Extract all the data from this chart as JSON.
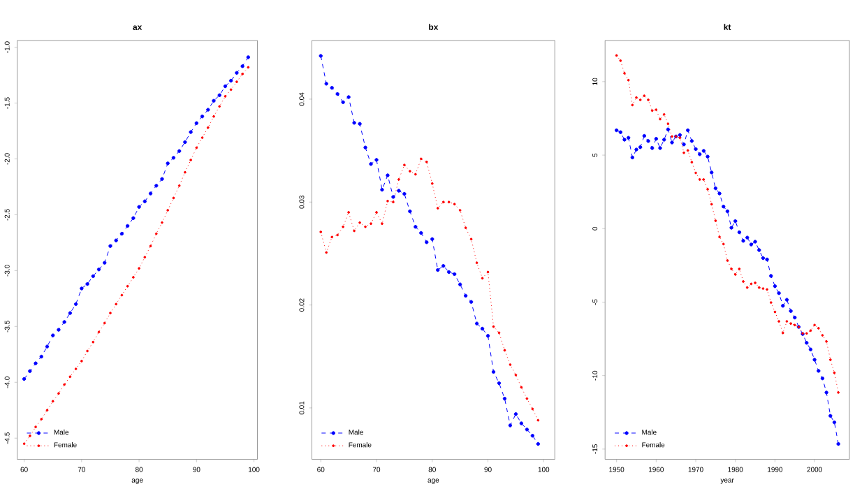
{
  "chart_data": [
    {
      "type": "line",
      "title": "ax",
      "xlabel": "age",
      "x": [
        60,
        61,
        62,
        63,
        64,
        65,
        66,
        67,
        68,
        69,
        70,
        71,
        72,
        73,
        74,
        75,
        76,
        77,
        78,
        79,
        80,
        81,
        82,
        83,
        84,
        85,
        86,
        87,
        88,
        89,
        90,
        91,
        92,
        93,
        94,
        95,
        96,
        97,
        98,
        99
      ],
      "xlim": [
        58.8,
        100.6
      ],
      "ylim": [
        -4.69,
        -0.94
      ],
      "xticks": [
        60,
        70,
        80,
        90,
        100
      ],
      "yticks": [
        {
          "value": -4.5,
          "label": "-4.5"
        },
        {
          "value": -4.0,
          "label": "-4.0"
        },
        {
          "value": -3.5,
          "label": "-3.5"
        },
        {
          "value": -3.0,
          "label": "-3.0"
        },
        {
          "value": -2.5,
          "label": "-2.5"
        },
        {
          "value": -2.0,
          "label": "-2.0"
        },
        {
          "value": -1.5,
          "label": "-1.5"
        },
        {
          "value": -1.0,
          "label": "-1.0"
        }
      ],
      "legend": "bottom left",
      "grid": false,
      "series": [
        {
          "name": "Male",
          "color": "#0000ff",
          "marker": "circle",
          "line_style": "dashed",
          "values": [
            -3.97,
            -3.9,
            -3.83,
            -3.77,
            -3.68,
            -3.58,
            -3.53,
            -3.46,
            -3.38,
            -3.3,
            -3.16,
            -3.12,
            -3.05,
            -2.99,
            -2.93,
            -2.78,
            -2.73,
            -2.67,
            -2.6,
            -2.53,
            -2.43,
            -2.38,
            -2.31,
            -2.24,
            -2.18,
            -2.04,
            -1.99,
            -1.93,
            -1.85,
            -1.76,
            -1.68,
            -1.62,
            -1.56,
            -1.48,
            -1.43,
            -1.35,
            -1.3,
            -1.23,
            -1.17,
            -1.09
          ]
        },
        {
          "name": "Female",
          "color": "#ff0000",
          "marker": "circle",
          "line_style": "dotted",
          "values": [
            -4.55,
            -4.48,
            -4.4,
            -4.33,
            -4.25,
            -4.17,
            -4.1,
            -4.02,
            -3.95,
            -3.88,
            -3.81,
            -3.72,
            -3.64,
            -3.55,
            -3.47,
            -3.38,
            -3.3,
            -3.22,
            -3.14,
            -3.06,
            -2.98,
            -2.88,
            -2.78,
            -2.67,
            -2.57,
            -2.46,
            -2.35,
            -2.24,
            -2.12,
            -2.01,
            -1.9,
            -1.81,
            -1.72,
            -1.62,
            -1.53,
            -1.44,
            -1.38,
            -1.31,
            -1.24,
            -1.18
          ]
        }
      ]
    },
    {
      "type": "line",
      "title": "bx",
      "xlabel": "age",
      "x": [
        60,
        61,
        62,
        63,
        64,
        65,
        66,
        67,
        68,
        69,
        70,
        71,
        72,
        73,
        74,
        75,
        76,
        77,
        78,
        79,
        80,
        81,
        82,
        83,
        84,
        85,
        86,
        87,
        88,
        89,
        90,
        91,
        92,
        93,
        94,
        95,
        96,
        97,
        98,
        99
      ],
      "xlim": [
        58.4,
        102
      ],
      "ylim": [
        0.005,
        0.0457
      ],
      "xticks": [
        60,
        70,
        80,
        90,
        100
      ],
      "yticks": [
        0.01,
        0.02,
        0.03,
        0.04
      ],
      "legend": "bottom left",
      "grid": false,
      "series": [
        {
          "name": "Male",
          "color": "#0000ff",
          "marker": "circle",
          "line_style": "dashed",
          "values": [
            0.0442,
            0.0415,
            0.0411,
            0.0405,
            0.0397,
            0.0402,
            0.0377,
            0.0376,
            0.0353,
            0.0337,
            0.0341,
            0.0312,
            0.0326,
            0.0305,
            0.0311,
            0.0308,
            0.0291,
            0.0276,
            0.027,
            0.0261,
            0.0264,
            0.0234,
            0.0238,
            0.0232,
            0.023,
            0.022,
            0.0209,
            0.0203,
            0.0182,
            0.0177,
            0.017,
            0.0135,
            0.0124,
            0.0109,
            0.0083,
            0.0094,
            0.0085,
            0.0079,
            0.0073,
            0.0065
          ]
        },
        {
          "name": "Female",
          "color": "#ff0000",
          "marker": "circle",
          "line_style": "dotted",
          "values": [
            0.0271,
            0.0251,
            0.0266,
            0.0268,
            0.0276,
            0.029,
            0.0272,
            0.028,
            0.0276,
            0.0279,
            0.029,
            0.0279,
            0.0301,
            0.03,
            0.0322,
            0.0336,
            0.033,
            0.0327,
            0.0342,
            0.0339,
            0.0318,
            0.0294,
            0.03,
            0.03,
            0.0298,
            0.0292,
            0.0275,
            0.0264,
            0.0241,
            0.0226,
            0.0232,
            0.0179,
            0.0173,
            0.0156,
            0.0142,
            0.0132,
            0.012,
            0.0109,
            0.0099,
            0.0088
          ]
        }
      ]
    },
    {
      "type": "line",
      "title": "kt",
      "xlabel": "year",
      "x": [
        1950,
        1951,
        1952,
        1953,
        1954,
        1955,
        1956,
        1957,
        1958,
        1959,
        1960,
        1961,
        1962,
        1963,
        1964,
        1965,
        1966,
        1967,
        1968,
        1969,
        1970,
        1971,
        1972,
        1973,
        1974,
        1975,
        1976,
        1977,
        1978,
        1979,
        1980,
        1981,
        1982,
        1983,
        1984,
        1985,
        1986,
        1987,
        1988,
        1989,
        1990,
        1991,
        1992,
        1993,
        1994,
        1995,
        1996,
        1997,
        1998,
        1999,
        2000,
        2001,
        2002,
        2003,
        2004,
        2005,
        2006
      ],
      "xlim": [
        1947.1,
        2008.8
      ],
      "ylim": [
        -15.7,
        12.8
      ],
      "xticks": [
        1950,
        1960,
        1970,
        1980,
        1990,
        2000
      ],
      "yticks": [
        -15,
        -10,
        -5,
        0,
        5,
        10
      ],
      "legend": "bottom left",
      "grid": false,
      "series": [
        {
          "name": "Male",
          "color": "#0000ff",
          "marker": "circle",
          "line_style": "dashed",
          "values": [
            6.69,
            6.56,
            6.05,
            6.18,
            4.84,
            5.38,
            5.54,
            6.31,
            5.96,
            5.48,
            6.11,
            5.48,
            6.05,
            6.75,
            5.86,
            6.27,
            6.37,
            5.73,
            6.69,
            5.96,
            5.41,
            5.06,
            5.29,
            4.9,
            3.82,
            2.74,
            2.39,
            1.5,
            1.18,
            0.06,
            0.51,
            -0.25,
            -0.83,
            -0.61,
            -1.08,
            -0.89,
            -1.46,
            -2.01,
            -2.1,
            -3.22,
            -3.92,
            -4.39,
            -5.25,
            -4.84,
            -5.61,
            -6.05,
            -6.69,
            -7.17,
            -7.77,
            -8.22,
            -8.92,
            -9.68,
            -10.19,
            -11.15,
            -12.74,
            -13.18,
            -14.65
          ]
        },
        {
          "name": "Female",
          "color": "#ff0000",
          "marker": "circle",
          "line_style": "dotted",
          "values": [
            11.78,
            11.43,
            10.57,
            10.1,
            8.41,
            8.92,
            8.76,
            9.04,
            8.76,
            8.03,
            8.09,
            7.45,
            7.77,
            7.13,
            6.27,
            6.27,
            6.18,
            5.16,
            5.32,
            4.52,
            3.79,
            3.34,
            3.34,
            2.68,
            1.66,
            0.54,
            -0.57,
            -1.05,
            -2.17,
            -2.74,
            -3.12,
            -2.74,
            -3.6,
            -4.01,
            -3.76,
            -3.69,
            -4.01,
            -4.08,
            -4.14,
            -5.03,
            -5.67,
            -6.31,
            -7.1,
            -6.31,
            -6.46,
            -6.56,
            -6.69,
            -7.13,
            -7.13,
            -6.94,
            -6.56,
            -6.78,
            -7.26,
            -7.68,
            -8.92,
            -9.81,
            -11.15
          ]
        }
      ]
    }
  ]
}
